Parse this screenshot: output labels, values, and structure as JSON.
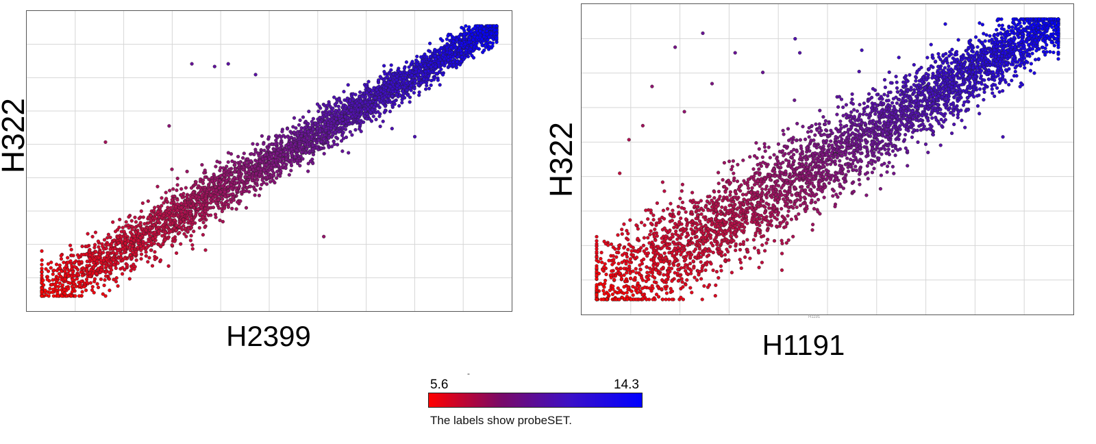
{
  "chart_data": [
    {
      "type": "scatter",
      "xlabel": "H2399",
      "ylabel": "H322",
      "grid": true,
      "spread": 0.045,
      "color_range": [
        5.6,
        14.3
      ],
      "outliers": [
        [
          0.33,
          0.86
        ],
        [
          0.38,
          0.85
        ],
        [
          0.41,
          0.86
        ],
        [
          0.47,
          0.82
        ],
        [
          0.14,
          0.57
        ],
        [
          0.28,
          0.63
        ],
        [
          0.62,
          0.22
        ],
        [
          0.77,
          0.62
        ],
        [
          0.82,
          0.59
        ],
        [
          0.36,
          0.17
        ]
      ]
    },
    {
      "type": "scatter",
      "xlabel": "H1191",
      "ylabel": "H322",
      "grid": true,
      "spread": 0.085,
      "color_range": [
        5.6,
        14.3
      ],
      "outliers": [
        [
          0.23,
          0.95
        ],
        [
          0.3,
          0.88
        ],
        [
          0.17,
          0.9
        ],
        [
          0.12,
          0.76
        ],
        [
          0.43,
          0.93
        ],
        [
          0.44,
          0.88
        ],
        [
          0.36,
          0.81
        ],
        [
          0.25,
          0.77
        ],
        [
          0.19,
          0.67
        ],
        [
          0.07,
          0.57
        ],
        [
          0.1,
          0.62
        ],
        [
          0.88,
          0.58
        ],
        [
          0.05,
          0.45
        ],
        [
          0.16,
          0.3
        ]
      ]
    }
  ],
  "panel2_small_label": "H1191",
  "legend": {
    "min": "5.6",
    "max": "14.3",
    "note": "The labels show probeSET.",
    "dash": "-",
    "color_low": "#ff0000",
    "color_high": "#0000ff"
  }
}
